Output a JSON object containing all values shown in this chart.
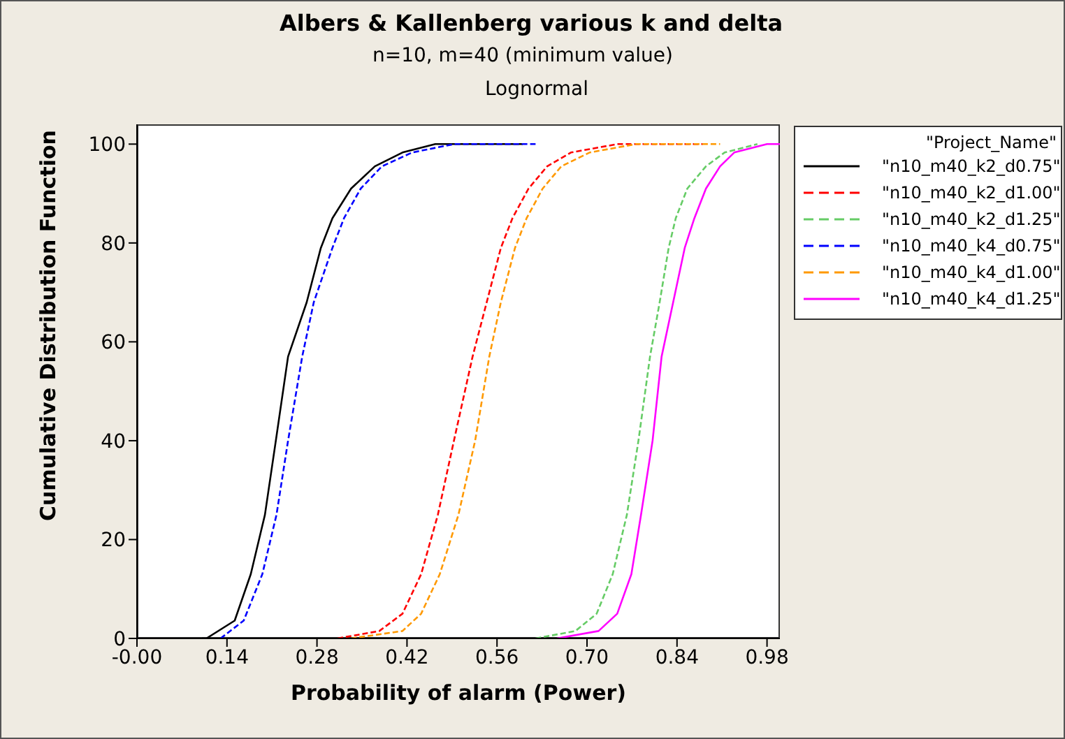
{
  "chart_data": {
    "type": "line",
    "title": "Albers & Kallenberg various k and delta",
    "subtitle": "n=10, m=40 (minimum value)",
    "annotations": [
      "Lognormal"
    ],
    "xlabel": "Probability of alarm (Power)",
    "ylabel": "Cumulative Distribution Function",
    "legend_title": "\"Project_Name\"",
    "legend": "right",
    "grid": false,
    "marker": "none",
    "xlim": [
      0,
      1.0
    ],
    "xticks": [
      {
        "value": 0,
        "label": "-0.00"
      },
      0.14,
      0.28,
      0.42,
      0.56,
      {
        "value": 0.7,
        "label": "0.70"
      },
      0.84,
      0.98
    ],
    "ylim": [
      0,
      104
    ],
    "yticks": [
      0,
      20,
      40,
      60,
      80,
      100
    ],
    "series": [
      {
        "name": "\"n10_m40_k2_d0.75\"",
        "color": "#000000",
        "line_style": "solid",
        "x": [
          0.101,
          0.108,
          0.152,
          0.177,
          0.199,
          0.216,
          0.235,
          0.264,
          0.286,
          0.304,
          0.333,
          0.37,
          0.413,
          0.464,
          0.6
        ],
        "values": [
          0,
          0,
          3.6,
          13,
          25,
          40,
          57,
          68,
          79,
          85,
          91,
          95.5,
          98.3,
          100,
          100
        ]
      },
      {
        "name": "\"n10_m40_k2_d1.00\"",
        "color": "#ff0000",
        "line_style": "dashed",
        "x": [
          0.312,
          0.377,
          0.413,
          0.442,
          0.468,
          0.493,
          0.522,
          0.544,
          0.566,
          0.584,
          0.609,
          0.638,
          0.675,
          0.747,
          0.88
        ],
        "values": [
          0,
          1.5,
          5,
          13,
          25,
          40,
          57,
          68,
          79,
          85,
          91,
          95.5,
          98.3,
          100,
          100
        ]
      },
      {
        "name": "\"n10_m40_k2_d1.25\"",
        "color": "#66cc66",
        "line_style": "dashed",
        "x": [
          0.62,
          0.682,
          0.715,
          0.74,
          0.762,
          0.78,
          0.798,
          0.813,
          0.827,
          0.838,
          0.856,
          0.885,
          0.914,
          0.965
        ],
        "values": [
          0,
          1.5,
          5,
          13,
          25,
          40,
          57,
          68,
          79,
          85,
          91,
          95.5,
          98.3,
          100
        ]
      },
      {
        "name": "\"n10_m40_k4_d0.75\"",
        "color": "#0000ff",
        "line_style": "dashed",
        "x": [
          0.13,
          0.166,
          0.195,
          0.217,
          0.235,
          0.257,
          0.275,
          0.304,
          0.322,
          0.348,
          0.381,
          0.428,
          0.493,
          0.62
        ],
        "values": [
          0,
          3.6,
          13,
          25,
          40,
          57,
          68,
          79,
          85,
          91,
          95.5,
          98.3,
          100,
          100
        ]
      },
      {
        "name": "\"n10_m40_k4_d1.00\"",
        "color": "#ff9900",
        "line_style": "dashed",
        "x": [
          0.333,
          0.413,
          0.442,
          0.471,
          0.5,
          0.526,
          0.548,
          0.566,
          0.588,
          0.606,
          0.631,
          0.66,
          0.704,
          0.776,
          0.907
        ],
        "values": [
          0,
          1.5,
          5,
          13,
          25,
          40,
          57,
          68,
          79,
          85,
          91,
          95.5,
          98.3,
          100,
          100
        ]
      },
      {
        "name": "\"n10_m40_k4_d1.25\"",
        "color": "#ff00ff",
        "line_style": "solid",
        "x": [
          0.653,
          0.718,
          0.747,
          0.769,
          0.784,
          0.802,
          0.816,
          0.834,
          0.852,
          0.867,
          0.885,
          0.907,
          0.929,
          0.98,
          1.0
        ],
        "values": [
          0,
          1.5,
          5,
          13,
          25,
          40,
          57,
          68,
          79,
          85,
          91,
          95.5,
          98.3,
          100,
          100
        ]
      }
    ]
  }
}
